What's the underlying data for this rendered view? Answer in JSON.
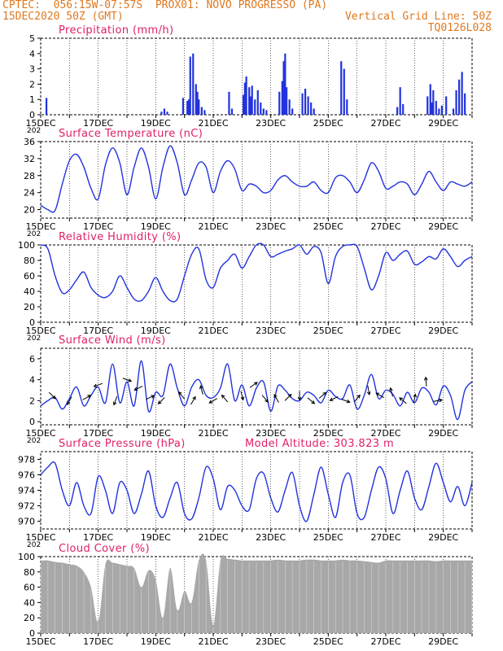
{
  "header": {
    "line1": "CPTEC:  056:15W-07:57S  PROX01: NOVO PROGRESSO (PA)",
    "line2_left": "15DEC2020 50Z (GMT)",
    "line2_right": "Vertical Grid Line: 50Z",
    "line3_right": "TQ0126L028"
  },
  "colors": {
    "title": "#e0206a",
    "header": "#e07820",
    "series": "#2233dd",
    "arrow": "#000000",
    "cloud": "#a8a8a8"
  },
  "x_labels": [
    "15DEC",
    "17DEC",
    "19DEC",
    "21DEC",
    "23DEC",
    "25DEC",
    "27DEC",
    "29DEC"
  ],
  "x_labels_spacing_days": 2,
  "x_range_days": [
    0,
    15
  ],
  "truncated_tick_label": "202",
  "model_altitude": "Model Altitude: 303.823 m",
  "chart_data": [
    {
      "id": "precip",
      "type": "bar",
      "title": "Precipitation (mm/h)",
      "ylim": [
        0,
        5
      ],
      "yticks": [
        0,
        1,
        2,
        3,
        4,
        5
      ],
      "grid": "vertical lines at 00Z each day",
      "x_units": "days since 15DEC 00Z",
      "x": [
        0.2,
        4.2,
        4.3,
        4.4,
        4.95,
        5.1,
        5.15,
        5.2,
        5.3,
        5.4,
        5.45,
        5.5,
        5.6,
        5.7,
        6.55,
        6.65,
        7.05,
        7.1,
        7.15,
        7.25,
        7.3,
        7.35,
        7.45,
        7.55,
        7.65,
        7.75,
        7.85,
        8.3,
        8.4,
        8.45,
        8.5,
        8.55,
        8.65,
        8.75,
        9.1,
        9.2,
        9.3,
        9.4,
        9.5,
        10.45,
        10.55,
        10.65,
        12.4,
        12.5,
        12.6,
        13.45,
        13.55,
        13.6,
        13.65,
        13.75,
        13.85,
        13.95,
        14.1,
        14.35,
        14.45,
        14.55,
        14.65,
        14.75
      ],
      "values": [
        1.1,
        0.2,
        0.4,
        0.2,
        1.1,
        0.9,
        1.0,
        3.8,
        4.0,
        2.0,
        1.5,
        1.0,
        0.5,
        0.3,
        1.5,
        0.4,
        1.3,
        2.1,
        2.5,
        1.8,
        1.2,
        1.9,
        1.0,
        1.6,
        0.8,
        0.4,
        0.3,
        1.5,
        2.2,
        3.5,
        4.0,
        1.8,
        1.0,
        0.4,
        1.4,
        1.7,
        1.2,
        0.8,
        0.4,
        3.5,
        3.0,
        1.0,
        0.5,
        1.8,
        0.7,
        1.2,
        2.0,
        0.8,
        1.6,
        0.9,
        0.4,
        0.6,
        1.2,
        0.4,
        1.6,
        2.3,
        2.8,
        1.4
      ]
    },
    {
      "id": "temp",
      "type": "line",
      "title": "Surface Temperature (nC)",
      "ylim": [
        18,
        36
      ],
      "yticks": [
        20,
        24,
        28,
        32,
        36
      ],
      "x_units": "days since 15DEC 00Z",
      "x": [
        0,
        0.25,
        0.5,
        0.75,
        1,
        1.25,
        1.5,
        1.75,
        2,
        2.25,
        2.5,
        2.75,
        3,
        3.25,
        3.5,
        3.75,
        4,
        4.25,
        4.5,
        4.75,
        5,
        5.25,
        5.5,
        5.75,
        6,
        6.25,
        6.5,
        6.75,
        7,
        7.25,
        7.5,
        7.75,
        8,
        8.25,
        8.5,
        8.75,
        9,
        9.25,
        9.5,
        9.75,
        10,
        10.25,
        10.5,
        10.75,
        11,
        11.25,
        11.5,
        11.75,
        12,
        12.25,
        12.5,
        12.75,
        13,
        13.25,
        13.5,
        13.75,
        14,
        14.25,
        14.5,
        14.75,
        15
      ],
      "values": [
        21,
        20,
        19.8,
        26,
        31.5,
        33,
        30,
        25,
        22.5,
        30.5,
        34.5,
        31,
        23.5,
        30,
        34.5,
        30,
        22.5,
        30,
        35,
        31,
        23.5,
        27,
        31,
        30,
        24,
        29,
        31.5,
        29.5,
        24.5,
        26,
        25.5,
        24,
        24.5,
        27,
        28,
        26.5,
        25.5,
        25.5,
        26.5,
        24.5,
        24,
        27.5,
        28,
        26.5,
        24,
        27,
        31,
        29,
        25,
        25.5,
        26.5,
        26,
        23.5,
        26,
        29,
        26.5,
        24.5,
        26.5,
        26,
        25.5,
        26.5
      ]
    },
    {
      "id": "rh",
      "type": "line",
      "title": "Relative Humidity (%)",
      "ylim": [
        0,
        100
      ],
      "yticks": [
        0,
        20,
        40,
        60,
        80,
        100
      ],
      "x_units": "days since 15DEC 00Z",
      "x": [
        0,
        0.25,
        0.5,
        0.75,
        1,
        1.25,
        1.5,
        1.75,
        2,
        2.25,
        2.5,
        2.75,
        3,
        3.25,
        3.5,
        3.75,
        4,
        4.25,
        4.5,
        4.75,
        5,
        5.25,
        5.5,
        5.75,
        6,
        6.25,
        6.5,
        6.75,
        7,
        7.25,
        7.5,
        7.75,
        8,
        8.25,
        8.5,
        8.75,
        9,
        9.25,
        9.5,
        9.75,
        10,
        10.25,
        10.5,
        10.75,
        11,
        11.25,
        11.5,
        11.75,
        12,
        12.25,
        12.5,
        12.75,
        13,
        13.25,
        13.5,
        13.75,
        14,
        14.25,
        14.5,
        14.75,
        15
      ],
      "values": [
        100,
        95,
        60,
        38,
        42,
        55,
        65,
        45,
        35,
        32,
        40,
        60,
        45,
        30,
        28,
        40,
        58,
        40,
        28,
        30,
        60,
        88,
        95,
        55,
        45,
        70,
        80,
        88,
        70,
        85,
        100,
        100,
        85,
        88,
        92,
        95,
        100,
        88,
        98,
        90,
        50,
        85,
        98,
        100,
        98,
        70,
        42,
        60,
        90,
        80,
        88,
        92,
        75,
        78,
        85,
        82,
        95,
        85,
        72,
        80,
        85
      ]
    },
    {
      "id": "wind",
      "type": "line",
      "title": "Surface Wind (m/s)",
      "ylim": [
        -0.3,
        7
      ],
      "yticks": [
        0,
        2,
        4,
        6
      ],
      "x_units": "days since 15DEC 00Z",
      "x": [
        0,
        0.25,
        0.5,
        0.75,
        1,
        1.25,
        1.5,
        1.75,
        2,
        2.25,
        2.5,
        2.75,
        3,
        3.25,
        3.5,
        3.75,
        4,
        4.25,
        4.5,
        4.75,
        5,
        5.25,
        5.5,
        5.75,
        6,
        6.25,
        6.5,
        6.75,
        7,
        7.25,
        7.5,
        7.75,
        8,
        8.25,
        8.5,
        8.75,
        9,
        9.25,
        9.5,
        9.75,
        10,
        10.25,
        10.5,
        10.75,
        11,
        11.25,
        11.5,
        11.75,
        12,
        12.25,
        12.5,
        12.75,
        13,
        13.25,
        13.5,
        13.75,
        14,
        14.25,
        14.5,
        14.75,
        15
      ],
      "values": [
        1.5,
        2,
        2.3,
        1.2,
        2.2,
        3.3,
        1.5,
        2.5,
        3.3,
        1.8,
        5.5,
        1.8,
        3.8,
        1.5,
        5.8,
        1.0,
        2.8,
        2.5,
        5.5,
        3.2,
        1.5,
        3.3,
        4,
        2.5,
        2.3,
        3.2,
        5.5,
        2,
        3.5,
        1.5,
        3.2,
        3.8,
        1.0,
        3.4,
        3,
        2.2,
        2,
        2.8,
        2.5,
        1.8,
        3,
        2.4,
        2.2,
        3.5,
        1.2,
        2.5,
        4.5,
        2.2,
        3,
        2.6,
        1.5,
        2.8,
        1.8,
        3.2,
        2.8,
        1.6,
        3.4,
        2.5,
        0.2,
        3,
        3.8
      ],
      "arrows": {
        "x": [
          0.4,
          1.0,
          1.6,
          2.0,
          2.6,
          3.0,
          3.4,
          3.8,
          4.2,
          4.9,
          5.3,
          5.6,
          6.0,
          6.4,
          7.0,
          7.4,
          7.8,
          8.2,
          8.6,
          9.0,
          9.4,
          9.8,
          10.2,
          10.6,
          11.0,
          11.4,
          11.8,
          12.2,
          12.6,
          13.0,
          13.4,
          13.8
        ],
        "dir_deg": [
          135,
          210,
          60,
          250,
          200,
          110,
          245,
          65,
          225,
          320,
          30,
          345,
          240,
          320,
          165,
          55,
          140,
          330,
          45,
          180,
          130,
          50,
          245,
          110,
          40,
          170,
          300,
          345,
          310,
          10,
          355,
          80
        ],
        "speed": [
          2.5,
          2.0,
          2.3,
          3.5,
          2.0,
          4.0,
          3.2,
          2.3,
          2.0,
          2.5,
          2.0,
          3.0,
          2.0,
          2.2,
          2.5,
          3.5,
          2.2,
          2.2,
          2.3,
          2.5,
          2.0,
          2.5,
          2.2,
          2.0,
          2.2,
          3.0,
          2.5,
          2.8,
          2.0,
          2.2,
          3.8,
          2.0
        ]
      }
    },
    {
      "id": "press",
      "type": "line",
      "title": "Surface Pressure (hPa)",
      "ylim": [
        969,
        979
      ],
      "yticks": [
        970,
        972,
        974,
        976,
        978
      ],
      "x_units": "days since 15DEC 00Z",
      "x": [
        0,
        0.25,
        0.5,
        0.75,
        1,
        1.25,
        1.5,
        1.75,
        2,
        2.25,
        2.5,
        2.75,
        3,
        3.25,
        3.5,
        3.75,
        4,
        4.25,
        4.5,
        4.75,
        5,
        5.25,
        5.5,
        5.75,
        6,
        6.25,
        6.5,
        6.75,
        7,
        7.25,
        7.5,
        7.75,
        8,
        8.25,
        8.5,
        8.75,
        9,
        9.25,
        9.5,
        9.75,
        10,
        10.25,
        10.5,
        10.75,
        11,
        11.25,
        11.5,
        11.75,
        12,
        12.25,
        12.5,
        12.75,
        13,
        13.25,
        13.5,
        13.75,
        14,
        14.25,
        14.5,
        14.75,
        15
      ],
      "values": [
        976,
        977,
        977.5,
        974,
        972,
        975,
        972,
        971,
        975.8,
        974,
        971,
        975,
        974,
        971,
        973.5,
        976.5,
        972,
        970.5,
        973,
        975,
        971,
        970.3,
        973,
        977,
        975.5,
        971.5,
        974.5,
        974,
        972,
        971.5,
        975.5,
        976.2,
        973,
        971.2,
        974,
        976.3,
        972,
        970,
        973.5,
        977,
        973.5,
        970.5,
        975,
        976,
        971,
        970.5,
        974,
        977,
        975.5,
        971,
        974,
        976.5,
        973,
        971.5,
        974.5,
        977.5,
        975,
        972.5,
        974.5,
        972,
        975
      ]
    },
    {
      "id": "cloud",
      "type": "area",
      "title": "Cloud Cover (%)",
      "ylim": [
        0,
        100
      ],
      "yticks": [
        0,
        20,
        40,
        60,
        80,
        100
      ],
      "x_units": "days since 15DEC 00Z",
      "x": [
        0,
        0.25,
        0.5,
        0.75,
        1,
        1.25,
        1.5,
        1.75,
        2,
        2.25,
        2.5,
        2.75,
        3,
        3.25,
        3.5,
        3.75,
        4,
        4.25,
        4.5,
        4.75,
        5,
        5.25,
        5.5,
        5.75,
        6,
        6.25,
        6.5,
        6.75,
        7,
        7.25,
        7.5,
        7.75,
        8,
        8.25,
        8.5,
        8.75,
        9,
        9.25,
        9.5,
        9.75,
        10,
        10.25,
        10.5,
        10.75,
        11,
        11.25,
        11.5,
        11.75,
        12,
        12.25,
        12.5,
        12.75,
        13,
        13.25,
        13.5,
        13.75,
        14,
        14.25,
        14.5,
        14.75,
        15
      ],
      "values": [
        95,
        95,
        93,
        92,
        90,
        88,
        80,
        60,
        15,
        90,
        92,
        90,
        88,
        85,
        60,
        82,
        70,
        20,
        85,
        30,
        55,
        40,
        95,
        95,
        10,
        95,
        97,
        96,
        95,
        95,
        95,
        95,
        95,
        96,
        95,
        95,
        95,
        96,
        96,
        95,
        95,
        95,
        96,
        95,
        95,
        94,
        93,
        92,
        95,
        95,
        95,
        95,
        95,
        95,
        95,
        94,
        95,
        95,
        95,
        95,
        95
      ]
    }
  ]
}
